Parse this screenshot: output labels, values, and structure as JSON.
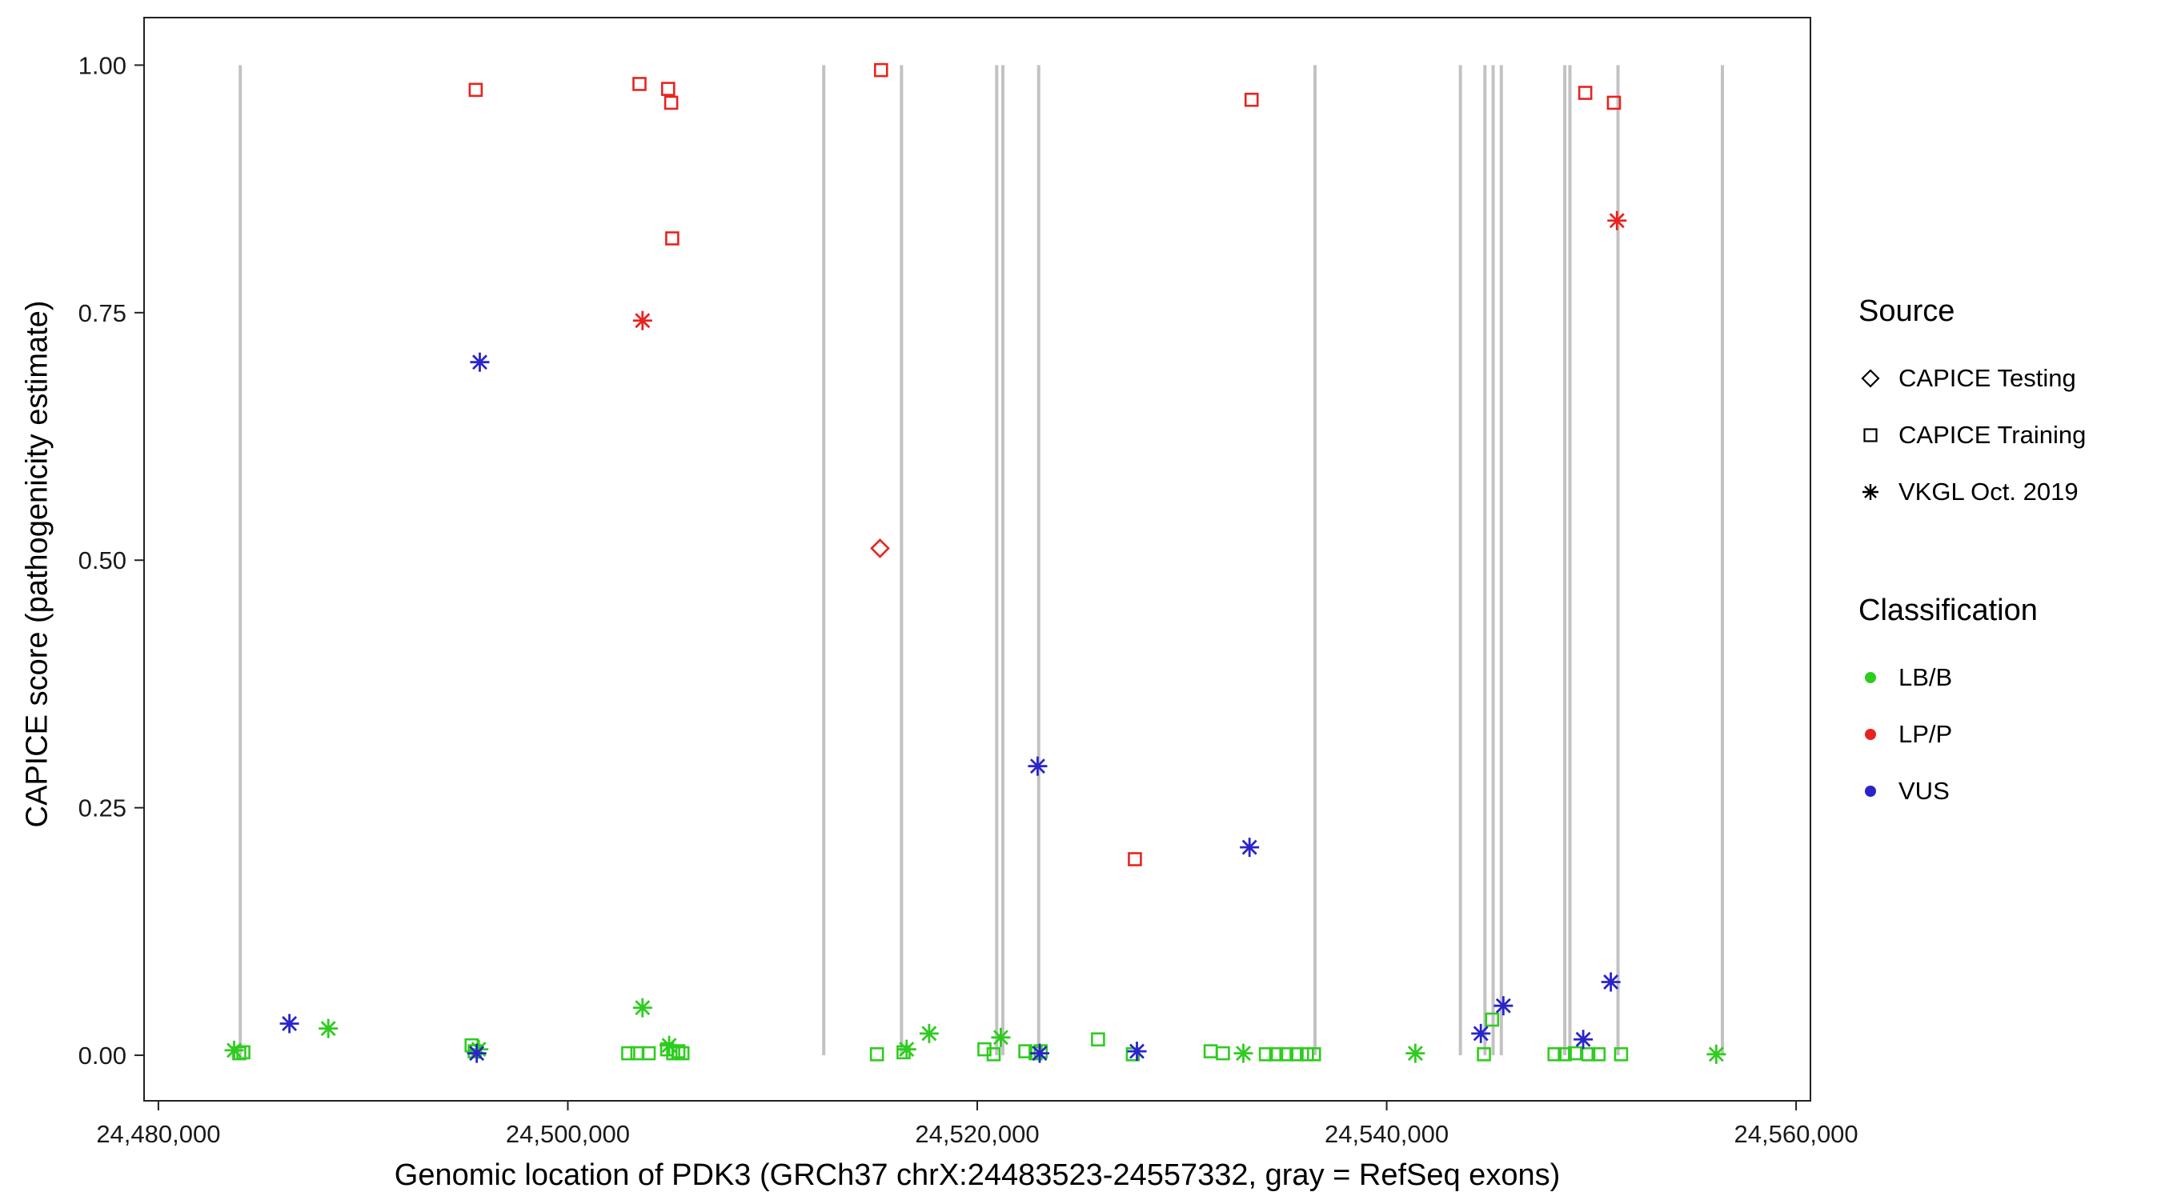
{
  "chart_data": {
    "type": "scatter",
    "title": "",
    "xlabel": "Genomic location of PDK3 (GRCh37 chrX:24483523-24557332, gray = RefSeq exons)",
    "ylabel": "CAPICE score (pathogenicity estimate)",
    "xlim": [
      24479300,
      24560700
    ],
    "ylim": [
      -0.046,
      1.048
    ],
    "x_ticks": [
      24480000,
      24500000,
      24520000,
      24540000,
      24560000
    ],
    "x_tick_labels": [
      "24,480,000",
      "24,500,000",
      "24,520,000",
      "24,540,000",
      "24,560,000"
    ],
    "y_ticks": [
      0.0,
      0.25,
      0.5,
      0.75,
      1.0
    ],
    "y_tick_labels": [
      "0.00",
      "0.25",
      "0.50",
      "0.75",
      "1.00"
    ],
    "grid": false,
    "legend_position": "right",
    "colors": {
      "LB/B": "#2ecc1f",
      "LP/P": "#e8231f",
      "VUS": "#2a24cb",
      "exon": "#c2c2c2",
      "axis": "#222222"
    },
    "exon_lines_x": [
      24484000,
      24512500,
      24516300,
      24520950,
      24521250,
      24523000,
      24536500,
      24543600,
      24544800,
      24545200,
      24545600,
      24548700,
      24548950,
      24551300,
      24556400
    ],
    "exon_line_y_range": [
      0.0,
      1.0
    ],
    "series": [
      {
        "name": "LB/B",
        "points": [
          {
            "x": 24483700,
            "y": 0.005,
            "shape": "asterisk"
          },
          {
            "x": 24483950,
            "y": 0.002,
            "shape": "square"
          },
          {
            "x": 24484150,
            "y": 0.003,
            "shape": "square"
          },
          {
            "x": 24488300,
            "y": 0.027,
            "shape": "asterisk"
          },
          {
            "x": 24495300,
            "y": 0.01,
            "shape": "square"
          },
          {
            "x": 24495450,
            "y": 0.004,
            "shape": "square"
          },
          {
            "x": 24495650,
            "y": 0.006,
            "shape": "asterisk"
          },
          {
            "x": 24502950,
            "y": 0.002,
            "shape": "square"
          },
          {
            "x": 24503400,
            "y": 0.002,
            "shape": "square"
          },
          {
            "x": 24503650,
            "y": 0.048,
            "shape": "asterisk"
          },
          {
            "x": 24503950,
            "y": 0.002,
            "shape": "square"
          },
          {
            "x": 24504850,
            "y": 0.006,
            "shape": "square"
          },
          {
            "x": 24504950,
            "y": 0.01,
            "shape": "asterisk"
          },
          {
            "x": 24505150,
            "y": 0.002,
            "shape": "square"
          },
          {
            "x": 24505400,
            "y": 0.004,
            "shape": "square"
          },
          {
            "x": 24505600,
            "y": 0.002,
            "shape": "square"
          },
          {
            "x": 24515100,
            "y": 0.001,
            "shape": "square"
          },
          {
            "x": 24516400,
            "y": 0.003,
            "shape": "square"
          },
          {
            "x": 24516550,
            "y": 0.006,
            "shape": "asterisk"
          },
          {
            "x": 24517650,
            "y": 0.022,
            "shape": "asterisk"
          },
          {
            "x": 24520350,
            "y": 0.006,
            "shape": "square"
          },
          {
            "x": 24520800,
            "y": 0.001,
            "shape": "square"
          },
          {
            "x": 24521150,
            "y": 0.018,
            "shape": "asterisk"
          },
          {
            "x": 24522350,
            "y": 0.004,
            "shape": "square"
          },
          {
            "x": 24522850,
            "y": 0.002,
            "shape": "square"
          },
          {
            "x": 24523100,
            "y": 0.004,
            "shape": "square"
          },
          {
            "x": 24525900,
            "y": 0.016,
            "shape": "square"
          },
          {
            "x": 24527600,
            "y": 0.001,
            "shape": "square"
          },
          {
            "x": 24531400,
            "y": 0.004,
            "shape": "square"
          },
          {
            "x": 24532000,
            "y": 0.002,
            "shape": "square"
          },
          {
            "x": 24533000,
            "y": 0.002,
            "shape": "asterisk"
          },
          {
            "x": 24534100,
            "y": 0.001,
            "shape": "square"
          },
          {
            "x": 24534600,
            "y": 0.001,
            "shape": "square"
          },
          {
            "x": 24535100,
            "y": 0.001,
            "shape": "square"
          },
          {
            "x": 24535600,
            "y": 0.001,
            "shape": "square"
          },
          {
            "x": 24536100,
            "y": 0.001,
            "shape": "square"
          },
          {
            "x": 24536450,
            "y": 0.001,
            "shape": "square"
          },
          {
            "x": 24541400,
            "y": 0.002,
            "shape": "asterisk"
          },
          {
            "x": 24544750,
            "y": 0.001,
            "shape": "square"
          },
          {
            "x": 24545150,
            "y": 0.036,
            "shape": "square"
          },
          {
            "x": 24548200,
            "y": 0.001,
            "shape": "square"
          },
          {
            "x": 24548700,
            "y": 0.001,
            "shape": "square"
          },
          {
            "x": 24549200,
            "y": 0.002,
            "shape": "square"
          },
          {
            "x": 24549850,
            "y": 0.001,
            "shape": "square"
          },
          {
            "x": 24550350,
            "y": 0.001,
            "shape": "square"
          },
          {
            "x": 24551450,
            "y": 0.001,
            "shape": "square"
          },
          {
            "x": 24556100,
            "y": 0.001,
            "shape": "asterisk"
          }
        ]
      },
      {
        "name": "VUS",
        "points": [
          {
            "x": 24486400,
            "y": 0.032,
            "shape": "asterisk"
          },
          {
            "x": 24495550,
            "y": 0.002,
            "shape": "asterisk"
          },
          {
            "x": 24495700,
            "y": 0.7,
            "shape": "asterisk"
          },
          {
            "x": 24522950,
            "y": 0.292,
            "shape": "asterisk"
          },
          {
            "x": 24523050,
            "y": 0.002,
            "shape": "asterisk"
          },
          {
            "x": 24527800,
            "y": 0.004,
            "shape": "asterisk"
          },
          {
            "x": 24533300,
            "y": 0.21,
            "shape": "asterisk"
          },
          {
            "x": 24544600,
            "y": 0.022,
            "shape": "asterisk"
          },
          {
            "x": 24545700,
            "y": 0.05,
            "shape": "asterisk"
          },
          {
            "x": 24549600,
            "y": 0.016,
            "shape": "asterisk"
          },
          {
            "x": 24550950,
            "y": 0.074,
            "shape": "asterisk"
          }
        ]
      },
      {
        "name": "LP/P",
        "points": [
          {
            "x": 24495500,
            "y": 0.975,
            "shape": "square"
          },
          {
            "x": 24503500,
            "y": 0.981,
            "shape": "square"
          },
          {
            "x": 24503650,
            "y": 0.742,
            "shape": "asterisk"
          },
          {
            "x": 24504900,
            "y": 0.976,
            "shape": "square"
          },
          {
            "x": 24505050,
            "y": 0.962,
            "shape": "square"
          },
          {
            "x": 24505100,
            "y": 0.825,
            "shape": "square"
          },
          {
            "x": 24515300,
            "y": 0.995,
            "shape": "square"
          },
          {
            "x": 24515250,
            "y": 0.512,
            "shape": "diamond"
          },
          {
            "x": 24527700,
            "y": 0.198,
            "shape": "square"
          },
          {
            "x": 24533400,
            "y": 0.965,
            "shape": "square"
          },
          {
            "x": 24549700,
            "y": 0.972,
            "shape": "square"
          },
          {
            "x": 24551100,
            "y": 0.962,
            "shape": "square"
          },
          {
            "x": 24551250,
            "y": 0.843,
            "shape": "asterisk"
          }
        ]
      }
    ],
    "legend": {
      "source_title": "Source",
      "source_items": [
        {
          "label": "CAPICE Testing",
          "shape": "diamond"
        },
        {
          "label": "CAPICE Training",
          "shape": "square"
        },
        {
          "label": "VKGL Oct. 2019",
          "shape": "asterisk"
        }
      ],
      "classification_title": "Classification",
      "classification_items": [
        {
          "label": "LB/B",
          "color": "#2ecc1f"
        },
        {
          "label": "LP/P",
          "color": "#e8231f"
        },
        {
          "label": "VUS",
          "color": "#2a24cb"
        }
      ]
    }
  }
}
